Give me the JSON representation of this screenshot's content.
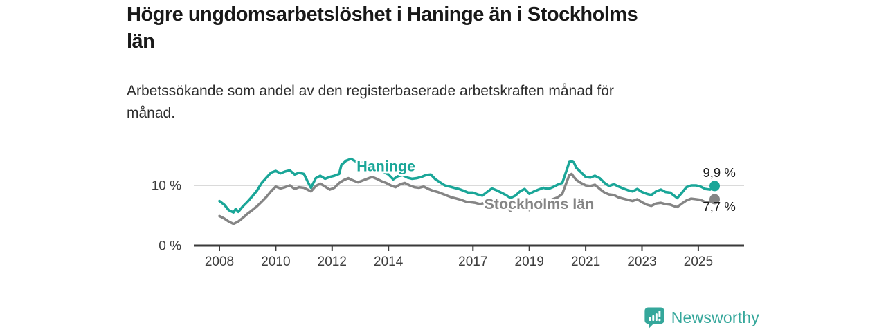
{
  "header": {
    "title_lines": [
      "Högre ungdomsarbetslöshet i Haninge än i Stockholms",
      "län"
    ],
    "subtitle_lines": [
      "Arbetssökande som andel av den registerbaserade arbetskraften månad för",
      "månad."
    ]
  },
  "colors": {
    "accent_teal": "#1aa698",
    "series_gray": "#858585",
    "axis_line": "#3a3a3a",
    "axis_text": "#3d3d3d",
    "gridline": "#cdcdcd",
    "value_label": "#1a1a1a",
    "brand_teal": "#35a79b",
    "background": "#ffffff"
  },
  "footer": {
    "brand": "Newsworthy"
  },
  "chart_data": {
    "type": "line",
    "title": "Högre ungdomsarbetslöshet i Haninge än i Stockholms län",
    "subtitle": "Arbetssökande som andel av den registerbaserade arbetskraften månad för månad.",
    "xlabel": "",
    "ylabel": "",
    "x_unit": "decimal-year (monthly series 2008–aug 2025)",
    "xlim": [
      2007.1,
      2026.6
    ],
    "ylim": [
      0,
      15.5
    ],
    "grid": "single horizontal gridline at 10 %",
    "legend_position": "inline labels on lines",
    "x_ticks": [
      2008,
      2010,
      2012,
      2014,
      2017,
      2019,
      2021,
      2023,
      2025
    ],
    "y_ticks": [
      {
        "value": 0,
        "label": "0 %"
      },
      {
        "value": 10,
        "label": "10 %"
      }
    ],
    "series": [
      {
        "name": "Haninge",
        "color": "#1aa698",
        "end_value": 9.9,
        "end_label": "9,9 %",
        "label_pos": {
          "x": 2012.87,
          "y": 12.35,
          "anchor": "start"
        },
        "points": [
          [
            2008.0,
            7.4
          ],
          [
            2008.17,
            6.8
          ],
          [
            2008.33,
            5.9
          ],
          [
            2008.5,
            5.5
          ],
          [
            2008.58,
            6.1
          ],
          [
            2008.67,
            5.6
          ],
          [
            2008.83,
            6.5
          ],
          [
            2009.0,
            7.3
          ],
          [
            2009.17,
            8.2
          ],
          [
            2009.33,
            9.1
          ],
          [
            2009.5,
            10.4
          ],
          [
            2009.67,
            11.3
          ],
          [
            2009.83,
            12.1
          ],
          [
            2010.0,
            12.4
          ],
          [
            2010.17,
            12.0
          ],
          [
            2010.33,
            12.3
          ],
          [
            2010.5,
            12.5
          ],
          [
            2010.67,
            11.8
          ],
          [
            2010.83,
            12.1
          ],
          [
            2011.0,
            11.9
          ],
          [
            2011.17,
            10.3
          ],
          [
            2011.25,
            9.6
          ],
          [
            2011.42,
            11.2
          ],
          [
            2011.58,
            11.6
          ],
          [
            2011.75,
            11.1
          ],
          [
            2011.92,
            11.4
          ],
          [
            2012.08,
            11.6
          ],
          [
            2012.25,
            11.9
          ],
          [
            2012.33,
            13.4
          ],
          [
            2012.5,
            14.1
          ],
          [
            2012.67,
            14.4
          ],
          [
            2012.83,
            14.0
          ],
          [
            2013.0,
            13.7
          ],
          [
            2013.17,
            13.9
          ],
          [
            2013.33,
            13.4
          ],
          [
            2013.5,
            13.0
          ],
          [
            2013.67,
            12.6
          ],
          [
            2013.83,
            12.2
          ],
          [
            2014.0,
            11.8
          ],
          [
            2014.17,
            11.0
          ],
          [
            2014.33,
            11.5
          ],
          [
            2014.5,
            11.7
          ],
          [
            2014.67,
            11.3
          ],
          [
            2014.83,
            11.1
          ],
          [
            2015.0,
            11.2
          ],
          [
            2015.17,
            11.4
          ],
          [
            2015.33,
            11.7
          ],
          [
            2015.5,
            11.8
          ],
          [
            2015.67,
            11.0
          ],
          [
            2015.83,
            10.5
          ],
          [
            2016.0,
            10.0
          ],
          [
            2016.17,
            9.8
          ],
          [
            2016.33,
            9.6
          ],
          [
            2016.5,
            9.4
          ],
          [
            2016.67,
            9.1
          ],
          [
            2016.83,
            8.8
          ],
          [
            2017.0,
            8.8
          ],
          [
            2017.17,
            8.5
          ],
          [
            2017.33,
            8.3
          ],
          [
            2017.5,
            8.9
          ],
          [
            2017.67,
            9.5
          ],
          [
            2017.83,
            9.2
          ],
          [
            2018.0,
            8.8
          ],
          [
            2018.17,
            8.4
          ],
          [
            2018.33,
            7.9
          ],
          [
            2018.5,
            8.3
          ],
          [
            2018.67,
            9.0
          ],
          [
            2018.83,
            9.4
          ],
          [
            2019.0,
            8.6
          ],
          [
            2019.17,
            9.0
          ],
          [
            2019.33,
            9.3
          ],
          [
            2019.5,
            9.6
          ],
          [
            2019.67,
            9.4
          ],
          [
            2019.83,
            9.7
          ],
          [
            2020.0,
            10.1
          ],
          [
            2020.17,
            10.4
          ],
          [
            2020.33,
            12.6
          ],
          [
            2020.42,
            13.9
          ],
          [
            2020.5,
            14.0
          ],
          [
            2020.58,
            13.8
          ],
          [
            2020.67,
            12.9
          ],
          [
            2020.83,
            12.2
          ],
          [
            2021.0,
            11.4
          ],
          [
            2021.17,
            11.3
          ],
          [
            2021.33,
            11.6
          ],
          [
            2021.5,
            11.2
          ],
          [
            2021.67,
            10.4
          ],
          [
            2021.83,
            9.9
          ],
          [
            2022.0,
            10.2
          ],
          [
            2022.17,
            9.8
          ],
          [
            2022.33,
            9.5
          ],
          [
            2022.5,
            9.2
          ],
          [
            2022.67,
            9.0
          ],
          [
            2022.83,
            9.4
          ],
          [
            2023.0,
            8.9
          ],
          [
            2023.17,
            8.6
          ],
          [
            2023.33,
            8.4
          ],
          [
            2023.5,
            9.0
          ],
          [
            2023.67,
            9.3
          ],
          [
            2023.83,
            8.9
          ],
          [
            2024.0,
            8.8
          ],
          [
            2024.17,
            8.2
          ],
          [
            2024.25,
            7.9
          ],
          [
            2024.42,
            8.8
          ],
          [
            2024.58,
            9.7
          ],
          [
            2024.75,
            10.0
          ],
          [
            2024.92,
            10.0
          ],
          [
            2025.08,
            9.8
          ],
          [
            2025.25,
            9.4
          ],
          [
            2025.42,
            9.3
          ],
          [
            2025.58,
            9.9
          ]
        ]
      },
      {
        "name": "Stockholms län",
        "color": "#858585",
        "end_value": 7.7,
        "end_label": "7,7 %",
        "label_pos": {
          "x": 2019.35,
          "y": 6.1,
          "anchor": "middle"
        },
        "points": [
          [
            2008.0,
            4.9
          ],
          [
            2008.17,
            4.5
          ],
          [
            2008.33,
            4.0
          ],
          [
            2008.5,
            3.6
          ],
          [
            2008.67,
            4.0
          ],
          [
            2008.83,
            4.6
          ],
          [
            2009.0,
            5.3
          ],
          [
            2009.17,
            5.9
          ],
          [
            2009.33,
            6.5
          ],
          [
            2009.5,
            7.3
          ],
          [
            2009.67,
            8.1
          ],
          [
            2009.83,
            9.0
          ],
          [
            2010.0,
            9.8
          ],
          [
            2010.17,
            9.5
          ],
          [
            2010.33,
            9.7
          ],
          [
            2010.5,
            10.0
          ],
          [
            2010.67,
            9.4
          ],
          [
            2010.83,
            9.7
          ],
          [
            2011.0,
            9.6
          ],
          [
            2011.17,
            9.2
          ],
          [
            2011.25,
            9.0
          ],
          [
            2011.42,
            9.9
          ],
          [
            2011.58,
            10.3
          ],
          [
            2011.75,
            9.8
          ],
          [
            2011.92,
            9.3
          ],
          [
            2012.08,
            9.6
          ],
          [
            2012.25,
            10.4
          ],
          [
            2012.42,
            10.9
          ],
          [
            2012.58,
            11.2
          ],
          [
            2012.75,
            10.8
          ],
          [
            2012.92,
            10.5
          ],
          [
            2013.08,
            10.8
          ],
          [
            2013.25,
            11.1
          ],
          [
            2013.42,
            11.4
          ],
          [
            2013.58,
            11.1
          ],
          [
            2013.75,
            10.7
          ],
          [
            2013.92,
            10.4
          ],
          [
            2014.08,
            10.0
          ],
          [
            2014.25,
            9.7
          ],
          [
            2014.42,
            10.2
          ],
          [
            2014.58,
            10.4
          ],
          [
            2014.75,
            10.0
          ],
          [
            2014.92,
            9.7
          ],
          [
            2015.08,
            9.6
          ],
          [
            2015.25,
            9.8
          ],
          [
            2015.42,
            9.4
          ],
          [
            2015.58,
            9.1
          ],
          [
            2015.75,
            8.9
          ],
          [
            2015.92,
            8.6
          ],
          [
            2016.08,
            8.3
          ],
          [
            2016.25,
            8.0
          ],
          [
            2016.42,
            7.8
          ],
          [
            2016.58,
            7.6
          ],
          [
            2016.75,
            7.3
          ],
          [
            2016.92,
            7.2
          ],
          [
            2017.08,
            7.1
          ],
          [
            2017.25,
            6.9
          ],
          [
            2017.42,
            7.1
          ],
          [
            2017.58,
            7.4
          ],
          [
            2017.75,
            7.5
          ],
          [
            2017.92,
            7.2
          ],
          [
            2018.08,
            6.9
          ],
          [
            2018.25,
            6.2
          ],
          [
            2018.33,
            5.8
          ],
          [
            2018.5,
            6.4
          ],
          [
            2018.67,
            6.9
          ],
          [
            2018.83,
            6.7
          ],
          [
            2019.0,
            5.9
          ],
          [
            2019.17,
            6.8
          ],
          [
            2019.33,
            7.3
          ],
          [
            2019.5,
            7.6
          ],
          [
            2019.67,
            7.4
          ],
          [
            2019.83,
            7.7
          ],
          [
            2020.0,
            8.0
          ],
          [
            2020.17,
            8.6
          ],
          [
            2020.33,
            10.6
          ],
          [
            2020.42,
            11.7
          ],
          [
            2020.5,
            11.9
          ],
          [
            2020.58,
            11.4
          ],
          [
            2020.67,
            10.9
          ],
          [
            2020.83,
            10.4
          ],
          [
            2021.0,
            10.0
          ],
          [
            2021.17,
            9.9
          ],
          [
            2021.33,
            10.1
          ],
          [
            2021.5,
            9.4
          ],
          [
            2021.67,
            8.8
          ],
          [
            2021.83,
            8.5
          ],
          [
            2022.0,
            8.4
          ],
          [
            2022.17,
            8.0
          ],
          [
            2022.33,
            7.8
          ],
          [
            2022.5,
            7.6
          ],
          [
            2022.67,
            7.4
          ],
          [
            2022.83,
            7.7
          ],
          [
            2023.0,
            7.2
          ],
          [
            2023.17,
            6.8
          ],
          [
            2023.33,
            6.6
          ],
          [
            2023.5,
            7.0
          ],
          [
            2023.67,
            7.1
          ],
          [
            2023.83,
            6.9
          ],
          [
            2024.0,
            6.8
          ],
          [
            2024.17,
            6.5
          ],
          [
            2024.25,
            6.4
          ],
          [
            2024.42,
            7.0
          ],
          [
            2024.58,
            7.5
          ],
          [
            2024.75,
            7.8
          ],
          [
            2024.92,
            7.7
          ],
          [
            2025.08,
            7.6
          ],
          [
            2025.25,
            7.2
          ],
          [
            2025.42,
            7.3
          ],
          [
            2025.58,
            7.7
          ]
        ]
      }
    ]
  }
}
